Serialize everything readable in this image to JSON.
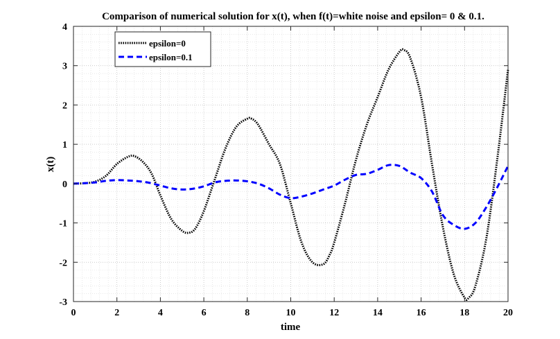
{
  "chart_data": {
    "type": "line",
    "title": "Comparison of numerical solution for x(t), when f(t)=white noise and epsilon= 0 & 0.1.",
    "xlabel": "time",
    "ylabel": "x(t)",
    "xlim": [
      0,
      20
    ],
    "ylim": [
      -3,
      4
    ],
    "xticks": [
      0,
      2,
      4,
      6,
      8,
      10,
      12,
      14,
      16,
      18,
      20
    ],
    "yticks": [
      -3,
      -2,
      -1,
      0,
      1,
      2,
      3,
      4
    ],
    "grid": true,
    "minor_grid": true,
    "legend_position": "top-left",
    "series": [
      {
        "name": "epsilon=0",
        "color": "#000000",
        "style": "dotted",
        "x": [
          0,
          0.5,
          1.0,
          1.5,
          2.0,
          2.5,
          2.8,
          3.2,
          3.6,
          4.0,
          4.5,
          5.0,
          5.3,
          5.6,
          6.0,
          6.5,
          7.0,
          7.5,
          8.0,
          8.2,
          8.5,
          9.0,
          9.5,
          10.0,
          10.5,
          11.0,
          11.5,
          11.8,
          12.0,
          12.5,
          13.0,
          13.5,
          14.0,
          14.5,
          15.0,
          15.2,
          15.5,
          16.0,
          16.5,
          17.0,
          17.5,
          18.0,
          18.2,
          18.5,
          19.0,
          19.5,
          20.0
        ],
        "y": [
          0,
          0.01,
          0.05,
          0.2,
          0.5,
          0.68,
          0.7,
          0.55,
          0.25,
          -0.3,
          -0.9,
          -1.2,
          -1.25,
          -1.15,
          -0.7,
          0.1,
          0.9,
          1.45,
          1.65,
          1.65,
          1.5,
          1.0,
          0.5,
          -0.5,
          -1.5,
          -2.0,
          -2.05,
          -1.8,
          -1.5,
          -0.5,
          0.6,
          1.5,
          2.2,
          2.9,
          3.35,
          3.4,
          3.2,
          2.2,
          0.5,
          -1.1,
          -2.3,
          -2.9,
          -2.9,
          -2.6,
          -1.4,
          0.6,
          2.9
        ]
      },
      {
        "name": "epsilon=0.1",
        "color": "#0000ff",
        "style": "dashed",
        "x": [
          0,
          0.5,
          1.0,
          1.5,
          2.0,
          2.5,
          3.0,
          3.5,
          4.0,
          4.5,
          5.0,
          5.5,
          6.0,
          6.5,
          7.0,
          7.5,
          8.0,
          8.5,
          9.0,
          9.5,
          10.0,
          10.5,
          11.0,
          11.5,
          12.0,
          12.5,
          13.0,
          13.5,
          14.0,
          14.5,
          15.0,
          15.5,
          16.0,
          16.5,
          17.0,
          17.5,
          18.0,
          18.5,
          19.0,
          19.5,
          20.0
        ],
        "y": [
          0,
          0.01,
          0.03,
          0.07,
          0.09,
          0.08,
          0.06,
          0.02,
          -0.05,
          -0.12,
          -0.15,
          -0.13,
          -0.07,
          0.03,
          0.07,
          0.08,
          0.06,
          0.0,
          -0.12,
          -0.28,
          -0.37,
          -0.33,
          -0.25,
          -0.15,
          -0.05,
          0.1,
          0.22,
          0.25,
          0.35,
          0.47,
          0.45,
          0.28,
          0.14,
          -0.2,
          -0.8,
          -1.05,
          -1.15,
          -1.0,
          -0.6,
          -0.1,
          0.45
        ]
      }
    ]
  }
}
